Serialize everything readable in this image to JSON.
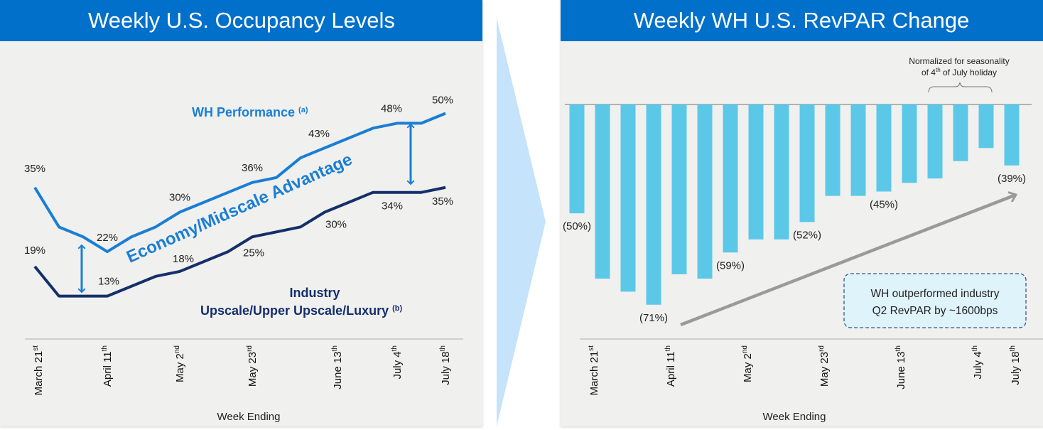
{
  "colors": {
    "header": "#0070CA",
    "panel": "#F0F0EF",
    "wh_line": "#1A7ED4",
    "industry_line": "#152F6B",
    "bar": "#5BC8E8",
    "chevron": "#C5E3FA",
    "trend_arrow": "#9A9A9A",
    "callout_fill": "#DFF3FB",
    "callout_border": "#2F5A8A"
  },
  "chart_data": [
    {
      "type": "line",
      "title": "Weekly U.S. Occupancy Levels",
      "xlabel": "Week Ending",
      "ylabel": "",
      "x_tick_labels": [
        {
          "index": 0,
          "label": "March 21",
          "sup": "st"
        },
        {
          "index": 3,
          "label": "April 11",
          "sup": "th"
        },
        {
          "index": 6,
          "label": "May 2",
          "sup": "nd"
        },
        {
          "index": 9,
          "label": "May 23",
          "sup": "rd"
        },
        {
          "index": 12,
          "label": "June 13",
          "sup": "th"
        },
        {
          "index": 15,
          "label": "July 4",
          "sup": "th"
        },
        {
          "index": 17,
          "label": "July 18",
          "sup": "th"
        }
      ],
      "series": [
        {
          "name": "WH Performance",
          "note": "(a)",
          "values": [
            35,
            27,
            25,
            22,
            25,
            27,
            30,
            32,
            34,
            36,
            37,
            41,
            43,
            45,
            47,
            48,
            48,
            50
          ],
          "data_labels": [
            {
              "index": 0,
              "text": "35%"
            },
            {
              "index": 3,
              "text": "22%"
            },
            {
              "index": 6,
              "text": "30%"
            },
            {
              "index": 9,
              "text": "36%"
            },
            {
              "index": 12,
              "text": "43%"
            },
            {
              "index": 15,
              "text": "48%"
            },
            {
              "index": 17,
              "text": "50%"
            }
          ]
        },
        {
          "name": "Industry",
          "subname": "Upscale/Upper Upscale/Luxury",
          "note": "(b)",
          "values": [
            19,
            13,
            13,
            13,
            15,
            17,
            18,
            20,
            22,
            25,
            26,
            27,
            30,
            32,
            34,
            34,
            34,
            35
          ],
          "data_labels": [
            {
              "index": 0,
              "text": "19%"
            },
            {
              "index": 3,
              "text": "13%"
            },
            {
              "index": 6,
              "text": "18%"
            },
            {
              "index": 9,
              "text": "25%"
            },
            {
              "index": 12,
              "text": "30%"
            },
            {
              "index": 15,
              "text": "34%"
            },
            {
              "index": 17,
              "text": "35%"
            }
          ]
        }
      ],
      "annotation": "Economy/Midscale Advantage",
      "ylim": [
        10,
        52
      ],
      "grid": false
    },
    {
      "type": "bar",
      "title": "Weekly WH U.S. RevPAR Change",
      "xlabel": "Week Ending",
      "ylabel": "",
      "values": [
        -50,
        -65,
        -68,
        -71,
        -64,
        -65,
        -59,
        -56,
        -56,
        -52,
        -46,
        -46,
        -45,
        -43,
        -42,
        -38,
        -35,
        -39
      ],
      "x_tick_labels": [
        {
          "index": 0,
          "label": "March 21",
          "sup": "st"
        },
        {
          "index": 3,
          "label": "April 11",
          "sup": "th"
        },
        {
          "index": 6,
          "label": "May 2",
          "sup": "nd"
        },
        {
          "index": 9,
          "label": "May 23",
          "sup": "rd"
        },
        {
          "index": 12,
          "label": "June 13",
          "sup": "th"
        },
        {
          "index": 15,
          "label": "July 4",
          "sup": "th"
        },
        {
          "index": 17,
          "label": "July 18",
          "sup": "th"
        }
      ],
      "data_labels": [
        {
          "index": 0,
          "text": "(50%)"
        },
        {
          "index": 3,
          "text": "(71%)"
        },
        {
          "index": 6,
          "text": "(59%)"
        },
        {
          "index": 9,
          "text": "(52%)"
        },
        {
          "index": 12,
          "text": "(45%)"
        },
        {
          "index": 17,
          "text": "(39%)"
        }
      ],
      "baseline": -25,
      "ylim": [
        -75,
        -25
      ],
      "note": {
        "line1": "Normalized for seasonality",
        "line2_pre": "of 4",
        "line2_sup": "th",
        "line2_post": " of July holiday",
        "bracket_from_index": 14,
        "bracket_to_index": 16
      },
      "callout": {
        "line1": "WH outperformed industry",
        "line2": "Q2 RevPAR by ~1600bps"
      },
      "grid": false
    }
  ]
}
